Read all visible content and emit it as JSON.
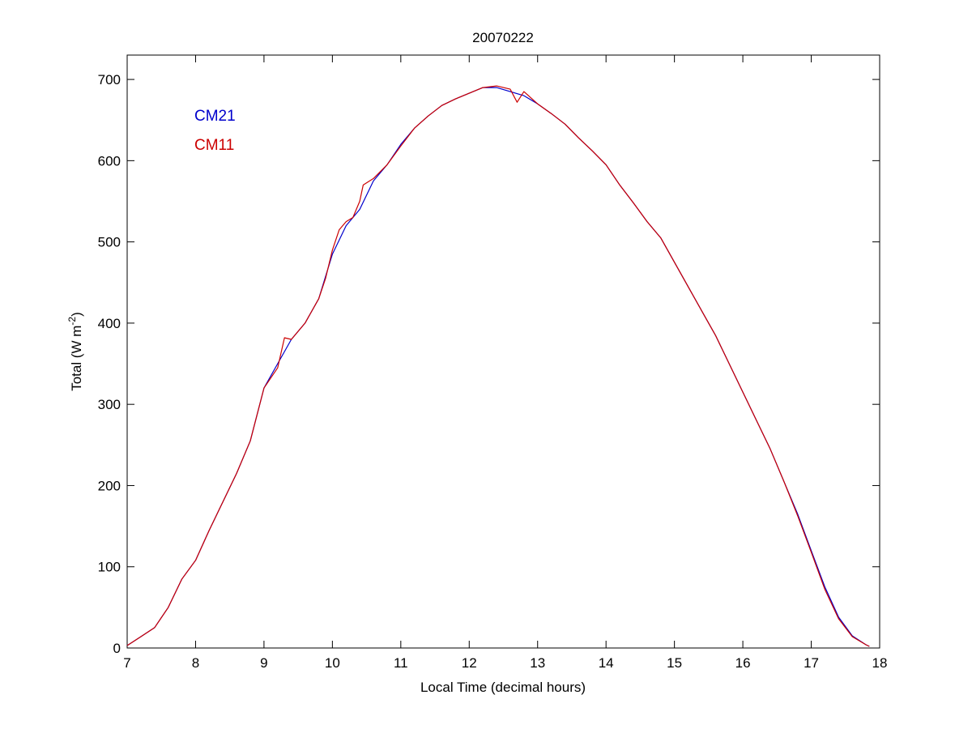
{
  "chart_data": {
    "type": "line",
    "title": "20070222",
    "xlabel": "Local Time (decimal hours)",
    "ylabel": {
      "text": "Total (W m",
      "superscript": "-2",
      "suffix": ")"
    },
    "xlim": [
      7,
      18
    ],
    "ylim": [
      0,
      730
    ],
    "xticks": [
      7,
      8,
      9,
      10,
      11,
      12,
      13,
      14,
      15,
      16,
      17,
      18
    ],
    "yticks": [
      0,
      100,
      200,
      300,
      400,
      500,
      600,
      700
    ],
    "grid": false,
    "legend_position": "top-left",
    "series": [
      {
        "name": "CM21",
        "color": "#0000cc",
        "x": [
          7.0,
          7.2,
          7.4,
          7.6,
          7.8,
          8.0,
          8.2,
          8.4,
          8.6,
          8.8,
          9.0,
          9.2,
          9.4,
          9.6,
          9.8,
          10.0,
          10.2,
          10.4,
          10.6,
          10.8,
          11.0,
          11.2,
          11.4,
          11.6,
          11.8,
          12.0,
          12.2,
          12.4,
          12.6,
          12.8,
          13.0,
          13.2,
          13.4,
          13.6,
          13.8,
          14.0,
          14.2,
          14.4,
          14.6,
          14.8,
          15.0,
          15.2,
          15.4,
          15.6,
          15.8,
          16.0,
          16.2,
          16.4,
          16.6,
          16.8,
          17.0,
          17.2,
          17.4,
          17.6,
          17.8,
          17.85
        ],
        "y": [
          3,
          14,
          25,
          50,
          85,
          108,
          145,
          180,
          215,
          255,
          320,
          350,
          380,
          400,
          430,
          485,
          520,
          540,
          575,
          595,
          620,
          640,
          655,
          668,
          676,
          683,
          690,
          690,
          685,
          680,
          670,
          658,
          645,
          628,
          612,
          595,
          570,
          548,
          525,
          505,
          475,
          445,
          415,
          385,
          350,
          315,
          280,
          245,
          205,
          165,
          120,
          75,
          38,
          15,
          4,
          2
        ]
      },
      {
        "name": "CM11",
        "color": "#cc0000",
        "x": [
          7.0,
          7.2,
          7.4,
          7.6,
          7.8,
          8.0,
          8.2,
          8.4,
          8.6,
          8.8,
          9.0,
          9.2,
          9.3,
          9.4,
          9.6,
          9.8,
          9.9,
          10.0,
          10.1,
          10.2,
          10.3,
          10.4,
          10.45,
          10.6,
          10.8,
          11.0,
          11.2,
          11.4,
          11.6,
          11.8,
          12.0,
          12.2,
          12.4,
          12.6,
          12.7,
          12.8,
          13.0,
          13.2,
          13.4,
          13.6,
          13.8,
          14.0,
          14.2,
          14.4,
          14.6,
          14.8,
          15.0,
          15.2,
          15.4,
          15.6,
          15.8,
          16.0,
          16.2,
          16.4,
          16.6,
          16.8,
          17.0,
          17.2,
          17.4,
          17.6,
          17.8,
          17.85
        ],
        "y": [
          3,
          14,
          25,
          50,
          85,
          108,
          145,
          180,
          215,
          255,
          320,
          345,
          382,
          380,
          400,
          430,
          455,
          490,
          515,
          525,
          530,
          550,
          570,
          578,
          595,
          618,
          640,
          655,
          668,
          676,
          683,
          690,
          692,
          688,
          672,
          685,
          670,
          658,
          645,
          628,
          612,
          595,
          570,
          548,
          525,
          505,
          475,
          445,
          415,
          385,
          350,
          315,
          280,
          245,
          205,
          163,
          118,
          72,
          36,
          14,
          4,
          2
        ]
      }
    ]
  }
}
